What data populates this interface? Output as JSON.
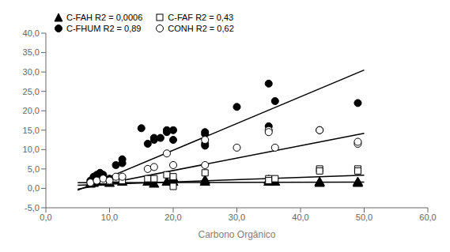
{
  "chart_data": {
    "type": "scatter",
    "xlabel": "Carbono Orgânico",
    "xlim": [
      0,
      60
    ],
    "ylim": [
      -5,
      40
    ],
    "xticks": [
      {
        "value": 0,
        "label": "0,0"
      },
      {
        "value": 10,
        "label": "10,0"
      },
      {
        "value": 20,
        "label": "20,0"
      },
      {
        "value": 30,
        "label": "30,0"
      },
      {
        "value": 40,
        "label": "40,0"
      },
      {
        "value": 50,
        "label": "50,0"
      },
      {
        "value": 60,
        "label": "60,0"
      }
    ],
    "yticks": [
      {
        "value": -5,
        "label": "-5,0"
      },
      {
        "value": 0,
        "label": "0,0"
      },
      {
        "value": 5,
        "label": "5,0"
      },
      {
        "value": 10,
        "label": "10,0"
      },
      {
        "value": 15,
        "label": "15,0"
      },
      {
        "value": 20,
        "label": "20,0"
      },
      {
        "value": 25,
        "label": "25,0"
      },
      {
        "value": 30,
        "label": "30,0"
      },
      {
        "value": 35,
        "label": "35,0"
      },
      {
        "value": 40,
        "label": "40,0"
      }
    ],
    "grid": false,
    "legend": "upper left",
    "series": [
      {
        "name": "C-FAH R2 = 0,0006",
        "color": "black",
        "marker": "triangle",
        "x": [
          7,
          7.5,
          8,
          8.5,
          9,
          10,
          11,
          12,
          16,
          17,
          19,
          20,
          20,
          25,
          25,
          35,
          35,
          36,
          43,
          43,
          49,
          49
        ],
        "values": [
          1.0,
          1.2,
          1.5,
          1.5,
          1.8,
          1.2,
          2.0,
          1.5,
          1.5,
          1.0,
          1.5,
          2.5,
          1.5,
          1.5,
          2.0,
          2.0,
          1.5,
          1.5,
          1.5,
          1.2,
          1.2,
          1.5
        ],
        "trend": {
          "x": [
            5,
            50
          ],
          "values": [
            1.48,
            1.62
          ]
        }
      },
      {
        "name": "C-FAF R2 = 0,43",
        "color": "black",
        "marker": "square_open",
        "x": [
          7,
          7.5,
          8,
          9,
          10,
          11,
          12,
          16,
          17,
          19,
          20,
          20,
          25,
          35,
          35,
          36,
          43,
          43,
          49,
          49
        ],
        "values": [
          1.5,
          2.0,
          2.5,
          2.0,
          1.8,
          2.5,
          2.0,
          2.5,
          2.5,
          3.5,
          0.5,
          3.0,
          4.0,
          2.5,
          2.0,
          2.5,
          5.0,
          4.5,
          5.0,
          4.5
        ],
        "trend": {
          "x": [
            5,
            50
          ],
          "values": [
            0.8,
            3.4
          ]
        }
      },
      {
        "name": "C-FHUM R2 = 0,89",
        "color": "black",
        "marker": "circle",
        "x": [
          7,
          7.5,
          8,
          8.5,
          9,
          10,
          11,
          12,
          12,
          15,
          16,
          17,
          17,
          18,
          19,
          19,
          20,
          20,
          25,
          25,
          25,
          25,
          30,
          35,
          35,
          36,
          43,
          49
        ],
        "values": [
          2.0,
          3.0,
          3.5,
          4.0,
          3.5,
          2.5,
          6.0,
          7.5,
          6.5,
          15.5,
          11.5,
          13.0,
          12.5,
          13.0,
          15.0,
          14.5,
          15.0,
          12.5,
          14.5,
          14.0,
          11.0,
          11.5,
          21.0,
          27.0,
          16.0,
          22.5,
          15.0,
          22.0
        ],
        "trend": {
          "x": [
            5,
            50
          ],
          "values": [
            -0.5,
            30.5
          ]
        }
      },
      {
        "name": "CONH R2 = 0,62",
        "color": "black",
        "marker": "circle_open",
        "x": [
          7,
          8,
          9,
          10,
          11,
          12,
          16,
          17,
          19,
          20,
          25,
          25,
          30,
          35,
          35,
          36,
          43,
          49,
          49
        ],
        "values": [
          1.5,
          2.0,
          2.5,
          2.0,
          3.0,
          3.0,
          5.0,
          5.5,
          9.0,
          6.0,
          12.5,
          6.0,
          10.5,
          15.0,
          14.5,
          10.5,
          15.0,
          11.5,
          12.0
        ],
        "trend": {
          "x": [
            5,
            50
          ],
          "values": [
            -0.2,
            14.2
          ]
        }
      }
    ]
  }
}
